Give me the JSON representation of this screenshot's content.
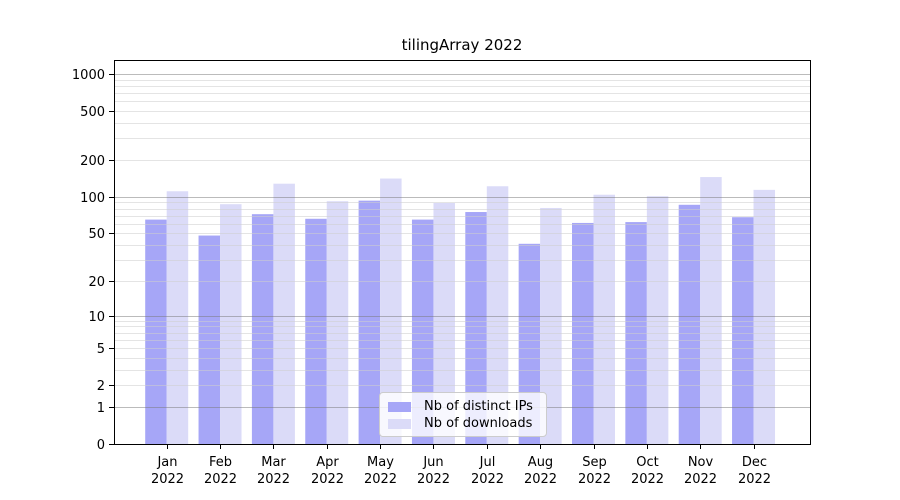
{
  "chart_data": {
    "type": "bar",
    "title": "tilingArray 2022",
    "yscale": "log1p",
    "grid": true,
    "legend_position": "lower center",
    "xlabel": "",
    "ylabel": "",
    "categories": [
      "Jan 2022",
      "Feb 2022",
      "Mar 2022",
      "Apr 2022",
      "May 2022",
      "Jun 2022",
      "Jul 2022",
      "Aug 2022",
      "Sep 2022",
      "Oct 2022",
      "Nov 2022",
      "Dec 2022"
    ],
    "series": [
      {
        "name": "Nb of distinct IPs",
        "color": "#a6a6f7",
        "values": [
          65,
          48,
          72,
          66,
          93,
          65,
          75,
          41,
          61,
          62,
          86,
          68
        ]
      },
      {
        "name": "Nb of downloads",
        "color": "#dbdbf8",
        "values": [
          111,
          87,
          128,
          92,
          141,
          89,
          122,
          81,
          104,
          101,
          145,
          114
        ]
      }
    ],
    "y_ticks": [
      0,
      1,
      2,
      5,
      10,
      20,
      50,
      100,
      200,
      500,
      1000
    ],
    "y_major_gridlines": [
      1,
      10,
      100,
      1000
    ],
    "ylim": [
      0,
      1300
    ]
  },
  "style_colors": {
    "axis": "#000000",
    "major_grid": "#c2c2c2",
    "minor_grid": "#e7e7e7",
    "legend_border": "#cccccc"
  }
}
